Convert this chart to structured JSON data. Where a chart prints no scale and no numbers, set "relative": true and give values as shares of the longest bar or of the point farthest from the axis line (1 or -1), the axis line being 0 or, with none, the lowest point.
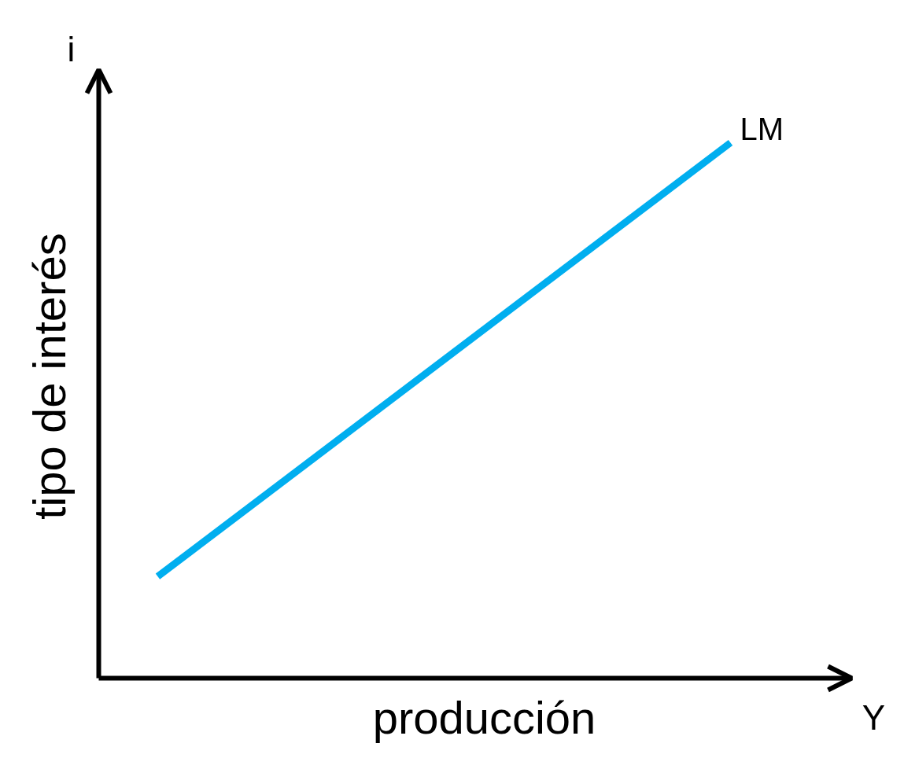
{
  "chart_data": {
    "type": "line",
    "relative": true,
    "xlabel": "producción",
    "ylabel": "tipo de interés",
    "categories": [
      null,
      null
    ],
    "series": [
      {
        "name": "LM",
        "color": "#00aeef",
        "values": [
          0.19,
          1
        ]
      }
    ],
    "annotations": [
      "i",
      "Y"
    ],
    "grid": false,
    "legend": false,
    "marker": "none",
    "line_style": "solid"
  }
}
